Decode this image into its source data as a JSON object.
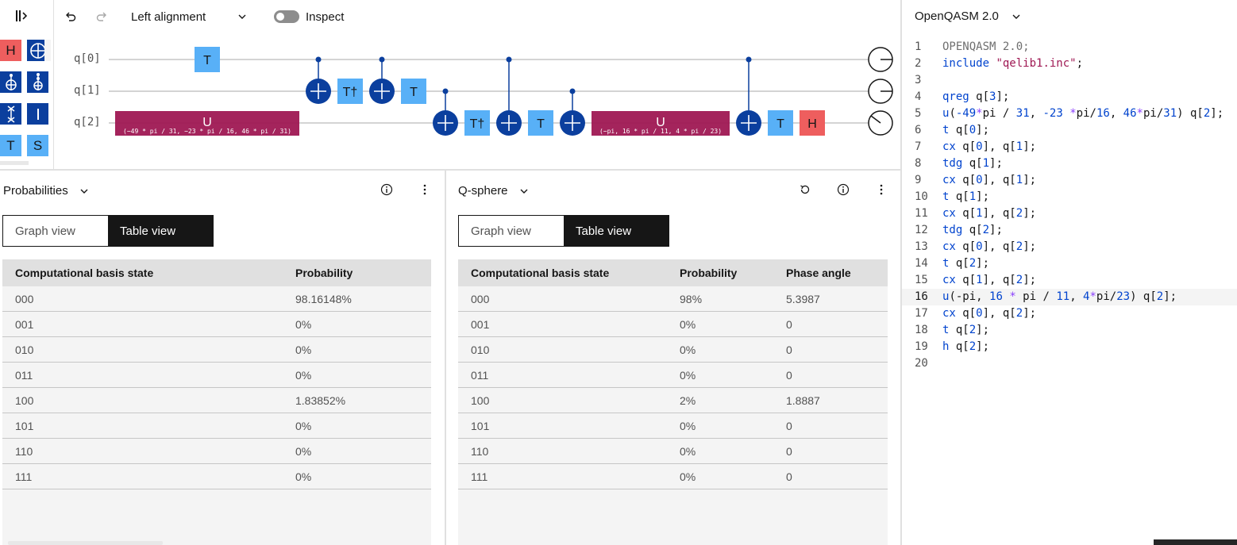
{
  "toolbar": {
    "alignment_label": "Left alignment",
    "inspect_label": "Inspect"
  },
  "palette": {
    "gates": [
      "H",
      "⊕",
      "",
      "",
      "",
      "",
      "T",
      "S"
    ]
  },
  "circuit": {
    "qubits": [
      "q[0]",
      "q[1]",
      "q[2]"
    ],
    "gates": {
      "t": "T",
      "tdg": "T†",
      "h": "H",
      "u": "U",
      "u1_params": "(−49 * pi / 31, −23 * pi / 16, 46 * pi / 31)",
      "u2_params": "(−pi, 16 * pi / 11, 4 * pi / 23)"
    }
  },
  "probabilities": {
    "title": "Probabilities",
    "graph_view": "Graph view",
    "table_view": "Table view",
    "col_state": "Computational basis state",
    "col_prob": "Probability",
    "rows": [
      {
        "state": "000",
        "prob": "98.16148%"
      },
      {
        "state": "001",
        "prob": "0%"
      },
      {
        "state": "010",
        "prob": "0%"
      },
      {
        "state": "011",
        "prob": "0%"
      },
      {
        "state": "100",
        "prob": "1.83852%"
      },
      {
        "state": "101",
        "prob": "0%"
      },
      {
        "state": "110",
        "prob": "0%"
      },
      {
        "state": "111",
        "prob": "0%"
      }
    ]
  },
  "qsphere": {
    "title": "Q-sphere",
    "graph_view": "Graph view",
    "table_view": "Table view",
    "col_state": "Computational basis state",
    "col_prob": "Probability",
    "col_phase": "Phase angle",
    "rows": [
      {
        "state": "000",
        "prob": "98%",
        "phase": "5.3987"
      },
      {
        "state": "001",
        "prob": "0%",
        "phase": "0"
      },
      {
        "state": "010",
        "prob": "0%",
        "phase": "0"
      },
      {
        "state": "011",
        "prob": "0%",
        "phase": "0"
      },
      {
        "state": "100",
        "prob": "2%",
        "phase": "1.8887"
      },
      {
        "state": "101",
        "prob": "0%",
        "phase": "0"
      },
      {
        "state": "110",
        "prob": "0%",
        "phase": "0"
      },
      {
        "state": "111",
        "prob": "0%",
        "phase": "0"
      }
    ]
  },
  "code": {
    "language": "OpenQASM 2.0",
    "active_line": 16,
    "lines": [
      "OPENQASM 2.0;",
      "include \"qelib1.inc\";",
      "",
      "qreg q[3];",
      "u(-49*pi / 31, -23 *pi/16, 46*pi/31) q[2];",
      "t q[0];",
      "cx q[0], q[1];",
      "tdg q[1];",
      "cx q[0], q[1];",
      "t q[1];",
      "cx q[1], q[2];",
      "tdg q[2];",
      "cx q[0], q[2];",
      "t q[2];",
      "cx q[1], q[2];",
      "u(-pi, 16 * pi / 11, 4*pi/23) q[2];",
      "cx q[0], q[2];",
      "t q[2];",
      "h q[2];",
      ""
    ]
  }
}
